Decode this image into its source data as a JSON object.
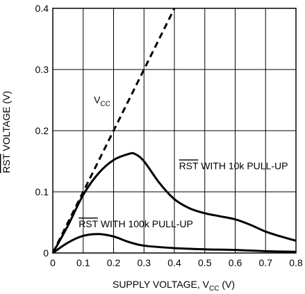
{
  "chart_data": {
    "type": "line",
    "xlabel": {
      "main": "SUPPLY VOLTAGE, V",
      "sub": "CC",
      "tail": " (V)"
    },
    "ylabel": {
      "overbar": "RST",
      "rest": " VOLTAGE (V)"
    },
    "xlim": [
      0,
      0.8
    ],
    "ylim": [
      0,
      0.4
    ],
    "x_ticks": [
      "0",
      "0.1",
      "0.2",
      "0.3",
      "0.4",
      "0.5",
      "0.6",
      "0.7",
      "0.8"
    ],
    "y_ticks": [
      "0",
      "0.1",
      "0.2",
      "0.3",
      "0.4"
    ],
    "grid": true,
    "series": [
      {
        "name": "VCC",
        "style": "dashed",
        "x": [
          0,
          0.4
        ],
        "y": [
          0,
          0.4
        ]
      },
      {
        "name": "RST WITH 10k PULL-UP",
        "style": "solid",
        "x": [
          0,
          0.05,
          0.1,
          0.15,
          0.2,
          0.25,
          0.27,
          0.3,
          0.35,
          0.4,
          0.45,
          0.5,
          0.55,
          0.6,
          0.65,
          0.7,
          0.75,
          0.8
        ],
        "y": [
          0,
          0.045,
          0.095,
          0.13,
          0.152,
          0.162,
          0.162,
          0.15,
          0.115,
          0.088,
          0.073,
          0.065,
          0.06,
          0.055,
          0.046,
          0.035,
          0.027,
          0.02
        ]
      },
      {
        "name": "RST WITH 100k PULL-UP",
        "style": "solid",
        "x": [
          0,
          0.05,
          0.1,
          0.15,
          0.2,
          0.25,
          0.3,
          0.4,
          0.5,
          0.6,
          0.7,
          0.8
        ],
        "y": [
          0,
          0.017,
          0.028,
          0.031,
          0.027,
          0.018,
          0.012,
          0.008,
          0.006,
          0.005,
          0.003,
          0.002
        ]
      }
    ],
    "annotations": [
      {
        "series": "VCC",
        "main": "V",
        "sub": "CC",
        "x": 0.135,
        "y": 0.245
      },
      {
        "series": "RST WITH 10k PULL-UP",
        "overbar": "RST",
        "rest": " WITH 10k PULL-UP",
        "x": 0.415,
        "y": 0.137
      },
      {
        "series": "RST WITH 100k PULL-UP",
        "overbar": "RST",
        "rest": " WITH 100k PULL-UP",
        "x": 0.085,
        "y": 0.042
      }
    ]
  }
}
